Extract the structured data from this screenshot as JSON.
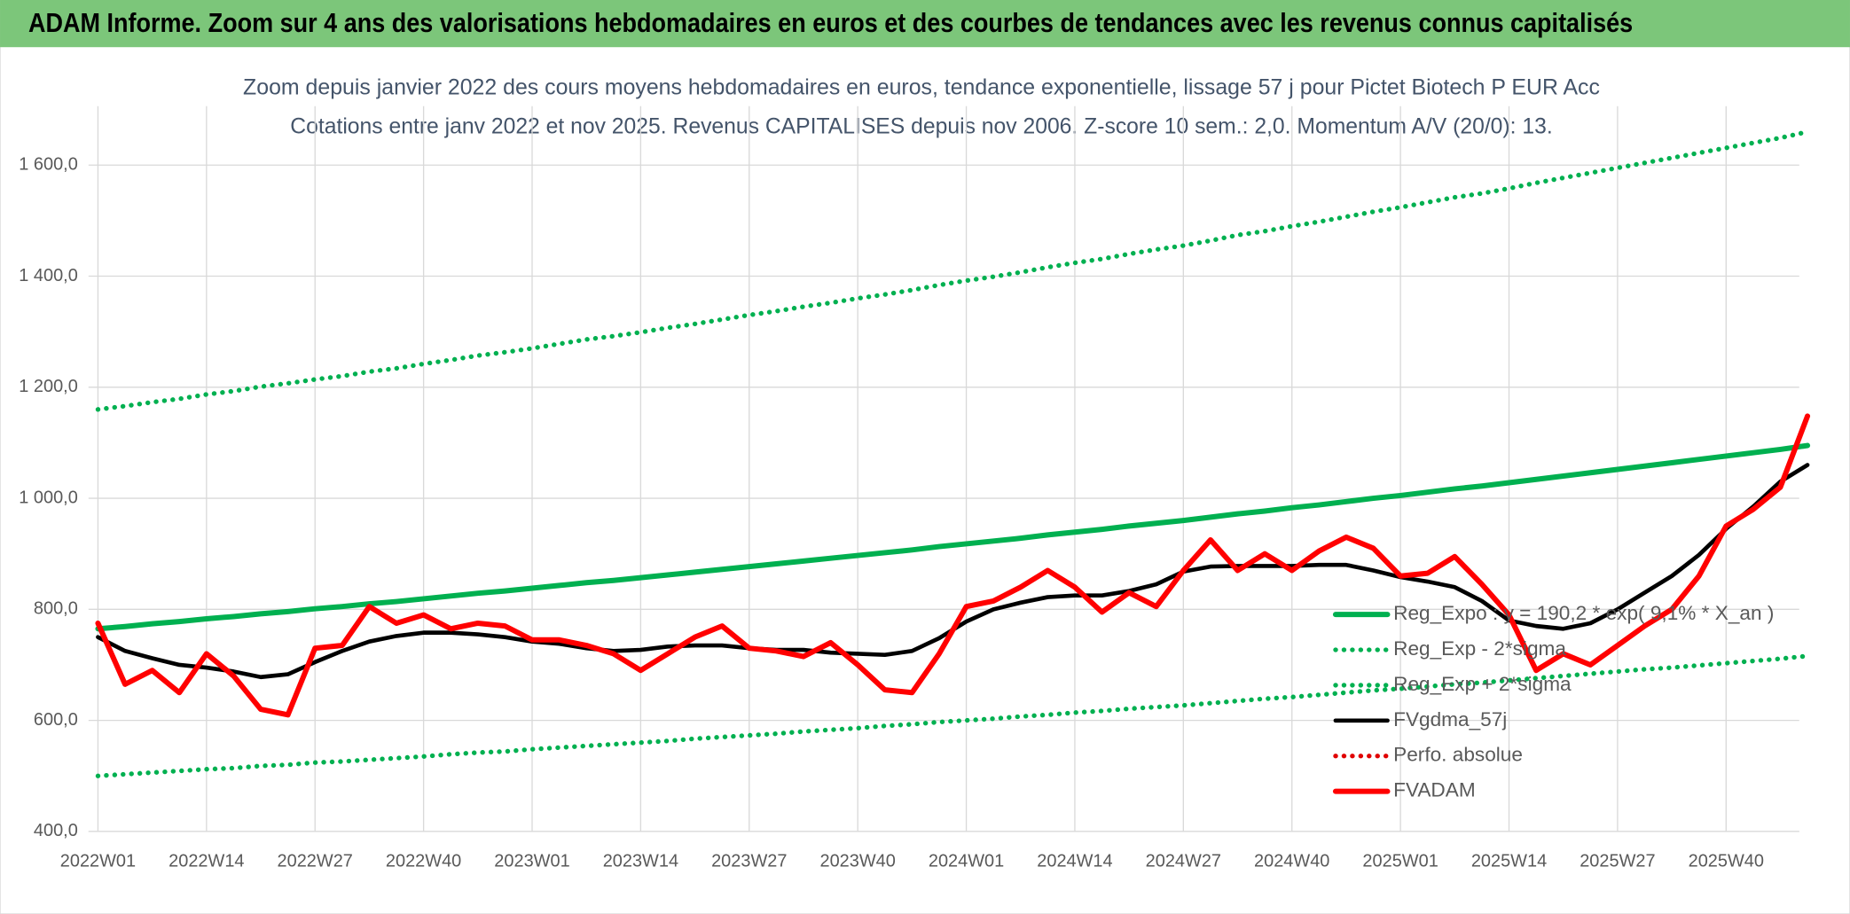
{
  "header": {
    "title": "ADAM Informe. Zoom sur 4 ans des valorisations hebdomadaires en euros et des courbes de tendances avec les revenus connus capitalisés"
  },
  "chart_data": {
    "type": "line",
    "title": "Zoom depuis janvier 2022 des cours moyens hebdomadaires en euros, tendance exponentielle, lissage 57 j pour Pictet Biotech P EUR Acc",
    "subtitle": "Cotations entre janv 2022 et nov 2025. Revenus CAPITALISES depuis nov 2006. Z-score 10 sem.: 2,0. Momentum A/V (20/0): 13.",
    "categories": [
      "2022W01",
      null,
      null,
      null,
      "2022W14",
      null,
      null,
      null,
      "2022W27",
      null,
      null,
      null,
      "2022W40",
      null,
      null,
      null,
      "2023W01",
      null,
      null,
      null,
      "2023W14",
      null,
      null,
      null,
      "2023W27",
      null,
      null,
      null,
      "2023W40",
      null,
      null,
      null,
      "2024W01",
      null,
      null,
      null,
      "2024W14",
      null,
      null,
      null,
      "2024W27",
      null,
      null,
      null,
      "2024W40",
      null,
      null,
      null,
      "2025W01",
      null,
      null,
      null,
      "2025W14",
      null,
      null,
      null,
      "2025W27",
      null,
      null,
      null,
      "2025W40",
      null,
      null,
      null
    ],
    "ylim": [
      400,
      1700
    ],
    "yticks": [
      {
        "value": 400,
        "label": "400,0"
      },
      {
        "value": 600,
        "label": "600,0"
      },
      {
        "value": 800,
        "label": "800,0"
      },
      {
        "value": 1000,
        "label": "1 000,0"
      },
      {
        "value": 1200,
        "label": "1 200,0"
      },
      {
        "value": 1400,
        "label": "1 400,0"
      },
      {
        "value": 1600,
        "label": "1 600,0"
      }
    ],
    "grid": true,
    "legend": "right",
    "series": [
      {
        "name": "Reg_Expo : y = 190,2 * exp( 9,1% *  X_an )",
        "color": "#00b050",
        "style": "solid",
        "values": [
          765,
          769,
          774,
          778,
          783,
          787,
          792,
          796,
          801,
          805,
          810,
          814,
          819,
          824,
          829,
          833,
          838,
          843,
          848,
          852,
          857,
          862,
          867,
          872,
          877,
          882,
          887,
          892,
          897,
          902,
          907,
          913,
          918,
          923,
          928,
          934,
          939,
          944,
          950,
          955,
          960,
          966,
          972,
          977,
          983,
          988,
          994,
          1000,
          1005,
          1011,
          1017,
          1022,
          1028,
          1034,
          1040,
          1046,
          1052,
          1058,
          1064,
          1070,
          1076,
          1082,
          1088,
          1095
        ]
      },
      {
        "name": "Reg_Exp - 2*sigma",
        "color": "#00b050",
        "style": "dotted",
        "values": [
          500,
          503,
          506,
          509,
          512,
          514,
          518,
          520,
          524,
          526,
          529,
          532,
          535,
          539,
          542,
          544,
          548,
          551,
          554,
          557,
          560,
          563,
          567,
          570,
          573,
          576,
          580,
          583,
          586,
          590,
          593,
          597,
          600,
          603,
          607,
          610,
          614,
          617,
          621,
          624,
          627,
          631,
          635,
          639,
          642,
          646,
          650,
          654,
          657,
          661,
          665,
          668,
          672,
          676,
          680,
          684,
          688,
          692,
          695,
          699,
          703,
          707,
          711,
          716
        ]
      },
      {
        "name": "Reg_Exp + 2*sigma",
        "color": "#00b050",
        "style": "dotted",
        "values": [
          1160,
          1166,
          1173,
          1179,
          1187,
          1193,
          1201,
          1207,
          1214,
          1220,
          1228,
          1234,
          1242,
          1249,
          1257,
          1263,
          1270,
          1278,
          1286,
          1292,
          1299,
          1307,
          1314,
          1322,
          1330,
          1337,
          1345,
          1352,
          1360,
          1367,
          1375,
          1384,
          1392,
          1399,
          1407,
          1416,
          1424,
          1431,
          1440,
          1448,
          1455,
          1464,
          1474,
          1481,
          1490,
          1498,
          1507,
          1516,
          1524,
          1533,
          1542,
          1549,
          1558,
          1568,
          1577,
          1586,
          1595,
          1604,
          1613,
          1622,
          1631,
          1640,
          1649,
          1660
        ]
      },
      {
        "name": "FVgdma_57j",
        "color": "#000000",
        "style": "solid",
        "values": [
          750,
          725,
          712,
          700,
          695,
          688,
          678,
          683,
          705,
          725,
          742,
          752,
          758,
          758,
          755,
          750,
          742,
          738,
          730,
          725,
          727,
          733,
          735,
          735,
          730,
          727,
          727,
          722,
          720,
          718,
          725,
          748,
          778,
          800,
          812,
          822,
          825,
          825,
          833,
          845,
          868,
          877,
          878,
          878,
          878,
          880,
          880,
          870,
          858,
          850,
          840,
          815,
          780,
          770,
          765,
          775,
          800,
          830,
          860,
          898,
          945,
          985,
          1030,
          1060
        ]
      },
      {
        "name": "Perfo. absolue",
        "color": "#e00000",
        "style": "dotted",
        "values": [
          null,
          null,
          null,
          null,
          null,
          null,
          null,
          null,
          null,
          null,
          null,
          null,
          null,
          null,
          null,
          null,
          null,
          null,
          null,
          null,
          null,
          null,
          null,
          null,
          null,
          null,
          null,
          null,
          null,
          null,
          null,
          null,
          null,
          null,
          null,
          null,
          null,
          null,
          null,
          null,
          null,
          null,
          null,
          null,
          null,
          null,
          null,
          null,
          null,
          null,
          null,
          null,
          null,
          null,
          null,
          null,
          null,
          null,
          null,
          null,
          null,
          null,
          null,
          null
        ]
      },
      {
        "name": "FVADAM",
        "color": "#ff0000",
        "style": "solid",
        "values": [
          775,
          665,
          690,
          650,
          720,
          680,
          620,
          610,
          730,
          735,
          805,
          775,
          790,
          765,
          775,
          770,
          745,
          745,
          735,
          720,
          690,
          720,
          750,
          770,
          730,
          725,
          715,
          740,
          700,
          655,
          650,
          720,
          805,
          815,
          840,
          870,
          840,
          795,
          830,
          805,
          870,
          925,
          870,
          900,
          870,
          905,
          930,
          910,
          860,
          865,
          895,
          845,
          790,
          690,
          720,
          700,
          735,
          770,
          800,
          860,
          950,
          980,
          1020,
          1148
        ]
      }
    ]
  }
}
